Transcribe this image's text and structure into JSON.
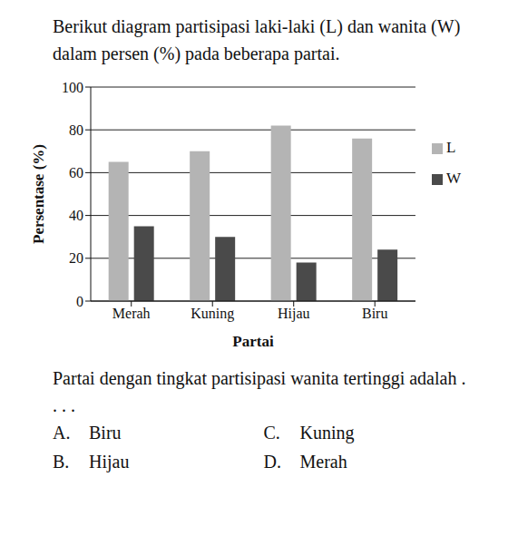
{
  "intro": "Berikut diagram partisipasi laki-laki (L) dan wanita (W) dalam persen (%) pada beberapa partai.",
  "chart_data": {
    "type": "bar",
    "x_label": "Partai",
    "y_label": "Persentase (%)",
    "categories": [
      "Merah",
      "Kuning",
      "Hijau",
      "Biru"
    ],
    "series": [
      {
        "name": "L",
        "color": "#b4b4b4",
        "values": [
          65,
          70,
          82,
          76
        ]
      },
      {
        "name": "W",
        "color": "#4a4a4a",
        "values": [
          35,
          30,
          18,
          24
        ]
      }
    ],
    "ylim": [
      0,
      100
    ],
    "yticks": [
      0,
      20,
      40,
      60,
      80,
      100
    ],
    "grid": true,
    "legend": "right"
  },
  "question": "Partai dengan tingkat partisipasi wanita tertinggi adalah . . . .",
  "options": [
    {
      "letter": "A.",
      "text": "Biru"
    },
    {
      "letter": "B.",
      "text": "Hijau"
    },
    {
      "letter": "C.",
      "text": "Kuning"
    },
    {
      "letter": "D.",
      "text": "Merah"
    }
  ]
}
